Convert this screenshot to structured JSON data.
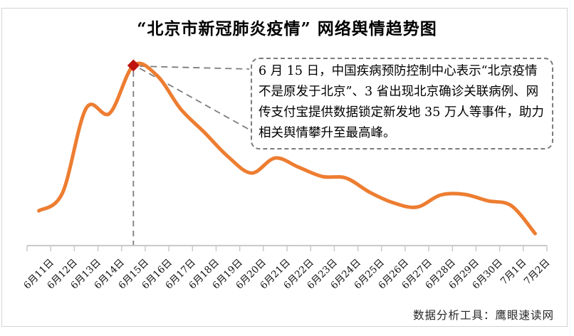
{
  "title": "“北京市新冠肺炎疫情” 网络舆情趋势图",
  "annotation": {
    "text": "6 月 15 日，中国疾病预防控制中心表示“北京疫情不是原发于北京”、3 省出现北京确诊关联病例、网传支付宝提供数据锁定新发地 35 万人等事件，助力相关舆情攀升至最高峰。",
    "marker_category": "6月15日"
  },
  "footer": {
    "label": "数据分析工具：鹰眼速读网"
  },
  "colors": {
    "line": "#ED7D31",
    "marker": "#BE1510",
    "dash": "#7C7C7C",
    "axis": "#C9C9C9",
    "frame": "#D4D4D4",
    "text": "#000000"
  },
  "chart_data": {
    "type": "line",
    "title": "“北京市新冠肺炎疫情” 网络舆情趋势图",
    "categories": [
      "6月11日",
      "6月12日",
      "6月13日",
      "6月14日",
      "6月15日",
      "6月16日",
      "6月17日",
      "6月18日",
      "6月19日",
      "6月20日",
      "6月21日",
      "6月22日",
      "6月23日",
      "6月24日",
      "6月25日",
      "6月26日",
      "6月27日",
      "6月28日",
      "6月29日",
      "6月30日",
      "7月1日",
      "7月2日"
    ],
    "values": [
      18.8,
      28.5,
      74.2,
      71.5,
      97.3,
      91.9,
      73.8,
      61.2,
      48.1,
      39.2,
      47.3,
      42.3,
      37.3,
      36.5,
      28.8,
      23.1,
      20.8,
      27.3,
      27.7,
      24.2,
      21.5,
      6.5
    ],
    "values_estimated": true,
    "ylim": [
      0,
      100
    ],
    "xlabel": "",
    "ylabel": "",
    "grid": false,
    "legend": false,
    "peak_index": 4,
    "peak_marker": "diamond",
    "smooth": true
  }
}
